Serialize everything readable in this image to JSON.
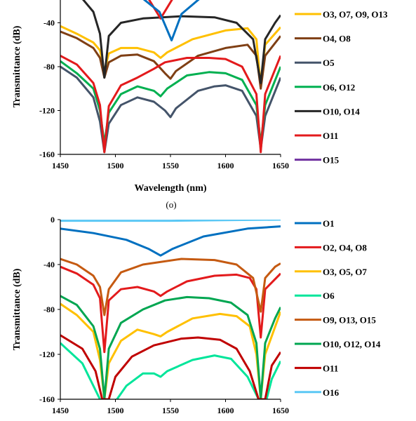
{
  "caption_o": "(o)",
  "chart_data": [
    {
      "type": "line",
      "title": "",
      "xlabel": "Wavelength (nm)",
      "ylabel": "Transmittance (dB)",
      "xlim": [
        1450,
        1650
      ],
      "ylim": [
        -160,
        0
      ],
      "xticks": [
        1450,
        1500,
        1550,
        1600,
        1650
      ],
      "yticks": [
        -40,
        -80,
        -120,
        -160
      ],
      "legend_position": "right",
      "clipped_top": true,
      "series": [
        {
          "name": "O3, O7, O9, O13",
          "color": "#ffc000",
          "points": [
            [
              1450,
              -43
            ],
            [
              1465,
              -50
            ],
            [
              1480,
              -58
            ],
            [
              1486,
              -65
            ],
            [
              1490,
              -84
            ],
            [
              1494,
              -68
            ],
            [
              1505,
              -63
            ],
            [
              1520,
              -63
            ],
            [
              1535,
              -67
            ],
            [
              1541,
              -72
            ],
            [
              1547,
              -67
            ],
            [
              1570,
              -55
            ],
            [
              1600,
              -47
            ],
            [
              1620,
              -45
            ],
            [
              1628,
              -55
            ],
            [
              1632,
              -98
            ],
            [
              1636,
              -60
            ],
            [
              1650,
              -44
            ]
          ]
        },
        {
          "name": "O4, O8",
          "color": "#7f3f14",
          "points": [
            [
              1450,
              -48
            ],
            [
              1465,
              -54
            ],
            [
              1480,
              -63
            ],
            [
              1486,
              -72
            ],
            [
              1490,
              -90
            ],
            [
              1494,
              -76
            ],
            [
              1505,
              -70
            ],
            [
              1520,
              -69
            ],
            [
              1535,
              -75
            ],
            [
              1545,
              -86
            ],
            [
              1550,
              -91
            ],
            [
              1555,
              -84
            ],
            [
              1575,
              -70
            ],
            [
              1600,
              -63
            ],
            [
              1620,
              -60
            ],
            [
              1628,
              -70
            ],
            [
              1632,
              -100
            ],
            [
              1636,
              -70
            ],
            [
              1650,
              -52
            ]
          ]
        },
        {
          "name": "O5",
          "color": "#44546a",
          "points": [
            [
              1450,
              -80
            ],
            [
              1465,
              -90
            ],
            [
              1480,
              -108
            ],
            [
              1486,
              -130
            ],
            [
              1490,
              -158
            ],
            [
              1494,
              -132
            ],
            [
              1505,
              -115
            ],
            [
              1520,
              -108
            ],
            [
              1535,
              -112
            ],
            [
              1545,
              -120
            ],
            [
              1550,
              -126
            ],
            [
              1555,
              -118
            ],
            [
              1575,
              -102
            ],
            [
              1590,
              -98
            ],
            [
              1600,
              -97
            ],
            [
              1615,
              -102
            ],
            [
              1628,
              -125
            ],
            [
              1632,
              -155
            ],
            [
              1636,
              -125
            ],
            [
              1650,
              -90
            ]
          ]
        },
        {
          "name": "O6, O12",
          "color": "#00b050",
          "points": [
            [
              1450,
              -75
            ],
            [
              1465,
              -86
            ],
            [
              1480,
              -100
            ],
            [
              1486,
              -120
            ],
            [
              1490,
              -150
            ],
            [
              1494,
              -122
            ],
            [
              1505,
              -105
            ],
            [
              1520,
              -98
            ],
            [
              1535,
              -102
            ],
            [
              1541,
              -107
            ],
            [
              1547,
              -100
            ],
            [
              1565,
              -88
            ],
            [
              1585,
              -85
            ],
            [
              1600,
              -86
            ],
            [
              1615,
              -92
            ],
            [
              1628,
              -115
            ],
            [
              1632,
              -150
            ],
            [
              1636,
              -115
            ],
            [
              1650,
              -80
            ]
          ]
        },
        {
          "name": "O10, O14",
          "color": "#262626",
          "points": [
            [
              1450,
              -3
            ],
            [
              1465,
              -12
            ],
            [
              1480,
              -30
            ],
            [
              1486,
              -50
            ],
            [
              1490,
              -90
            ],
            [
              1494,
              -52
            ],
            [
              1505,
              -40
            ],
            [
              1525,
              -36
            ],
            [
              1560,
              -34
            ],
            [
              1590,
              -35
            ],
            [
              1610,
              -40
            ],
            [
              1625,
              -55
            ],
            [
              1632,
              -95
            ],
            [
              1636,
              -55
            ],
            [
              1645,
              -40
            ],
            [
              1650,
              -33
            ]
          ]
        },
        {
          "name": "O11",
          "color": "#e31a1c",
          "points": [
            [
              1450,
              -70
            ],
            [
              1465,
              -78
            ],
            [
              1480,
              -95
            ],
            [
              1486,
              -115
            ],
            [
              1490,
              -158
            ],
            [
              1494,
              -116
            ],
            [
              1505,
              -97
            ],
            [
              1520,
              -90
            ],
            [
              1535,
              -82
            ],
            [
              1545,
              -76
            ],
            [
              1565,
              -72
            ],
            [
              1585,
              -72
            ],
            [
              1600,
              -73
            ],
            [
              1615,
              -80
            ],
            [
              1628,
              -105
            ],
            [
              1632,
              -158
            ],
            [
              1636,
              -105
            ],
            [
              1650,
              -70
            ]
          ]
        },
        {
          "name": "",
          "color": "#e31a1c",
          "points": [
            [
              1530,
              -18
            ],
            [
              1541,
              -36
            ],
            [
              1552,
              -18
            ]
          ]
        },
        {
          "name": "",
          "color": "#0070c0",
          "points": [
            [
              1485,
              -7
            ],
            [
              1525,
              -18
            ],
            [
              1540,
              -30
            ],
            [
              1551,
              -56
            ],
            [
              1560,
              -32
            ],
            [
              1580,
              -15
            ],
            [
              1600,
              -7
            ]
          ]
        },
        {
          "name": "O15",
          "color": "#7030a0",
          "points": []
        }
      ]
    },
    {
      "type": "line",
      "title": "",
      "xlabel": "",
      "ylabel": "Transmittance (dB)",
      "xlim": [
        1450,
        1650
      ],
      "ylim": [
        -160,
        0
      ],
      "xticks": [
        1450,
        1500,
        1550,
        1600,
        1650
      ],
      "yticks": [
        0,
        -40,
        -80,
        -120,
        -160
      ],
      "legend_position": "right",
      "series": [
        {
          "name": "O1",
          "color": "#0070c0",
          "points": [
            [
              1450,
              -8
            ],
            [
              1480,
              -12
            ],
            [
              1510,
              -18
            ],
            [
              1530,
              -26
            ],
            [
              1541,
              -32
            ],
            [
              1552,
              -26
            ],
            [
              1580,
              -15
            ],
            [
              1620,
              -8
            ],
            [
              1650,
              -6
            ]
          ]
        },
        {
          "name": "O2, O4, O8",
          "color": "#e31a1c",
          "points": [
            [
              1450,
              -42
            ],
            [
              1465,
              -48
            ],
            [
              1480,
              -58
            ],
            [
              1486,
              -70
            ],
            [
              1490,
              -118
            ],
            [
              1494,
              -72
            ],
            [
              1505,
              -62
            ],
            [
              1520,
              -60
            ],
            [
              1535,
              -64
            ],
            [
              1541,
              -68
            ],
            [
              1547,
              -64
            ],
            [
              1565,
              -55
            ],
            [
              1590,
              -50
            ],
            [
              1610,
              -49
            ],
            [
              1622,
              -52
            ],
            [
              1628,
              -62
            ],
            [
              1632,
              -105
            ],
            [
              1636,
              -62
            ],
            [
              1650,
              -48
            ]
          ]
        },
        {
          "name": "O3, O5, O7",
          "color": "#ffc000",
          "points": [
            [
              1450,
              -75
            ],
            [
              1465,
              -85
            ],
            [
              1480,
              -100
            ],
            [
              1486,
              -125
            ],
            [
              1490,
              -160
            ],
            [
              1494,
              -128
            ],
            [
              1505,
              -108
            ],
            [
              1520,
              -98
            ],
            [
              1535,
              -102
            ],
            [
              1541,
              -104
            ],
            [
              1547,
              -100
            ],
            [
              1570,
              -88
            ],
            [
              1595,
              -84
            ],
            [
              1610,
              -86
            ],
            [
              1622,
              -95
            ],
            [
              1628,
              -120
            ],
            [
              1632,
              -160
            ],
            [
              1636,
              -120
            ],
            [
              1650,
              -82
            ]
          ]
        },
        {
          "name": "O6",
          "color": "#00e59a",
          "points": [
            [
              1450,
              -110
            ],
            [
              1470,
              -128
            ],
            [
              1486,
              -160
            ],
            [
              1494,
              -165
            ],
            [
              1500,
              -162
            ],
            [
              1510,
              -148
            ],
            [
              1525,
              -137
            ],
            [
              1535,
              -137
            ],
            [
              1541,
              -140
            ],
            [
              1547,
              -135
            ],
            [
              1570,
              -125
            ],
            [
              1590,
              -121
            ],
            [
              1605,
              -124
            ],
            [
              1620,
              -140
            ],
            [
              1630,
              -160
            ],
            [
              1636,
              -165
            ],
            [
              1642,
              -142
            ],
            [
              1650,
              -126
            ]
          ]
        },
        {
          "name": "O9, O13, O15",
          "color": "#c55a11",
          "points": [
            [
              1450,
              -35
            ],
            [
              1465,
              -40
            ],
            [
              1480,
              -50
            ],
            [
              1486,
              -60
            ],
            [
              1490,
              -85
            ],
            [
              1494,
              -62
            ],
            [
              1505,
              -47
            ],
            [
              1525,
              -40
            ],
            [
              1560,
              -35
            ],
            [
              1590,
              -36
            ],
            [
              1610,
              -40
            ],
            [
              1625,
              -52
            ],
            [
              1632,
              -82
            ],
            [
              1636,
              -52
            ],
            [
              1645,
              -42
            ],
            [
              1650,
              -39
            ]
          ]
        },
        {
          "name": "O10, O12, O14",
          "color": "#00a651",
          "points": [
            [
              1450,
              -68
            ],
            [
              1465,
              -76
            ],
            [
              1480,
              -95
            ],
            [
              1486,
              -115
            ],
            [
              1490,
              -160
            ],
            [
              1494,
              -115
            ],
            [
              1505,
              -92
            ],
            [
              1525,
              -80
            ],
            [
              1545,
              -72
            ],
            [
              1565,
              -69
            ],
            [
              1585,
              -70
            ],
            [
              1605,
              -74
            ],
            [
              1620,
              -85
            ],
            [
              1628,
              -110
            ],
            [
              1632,
              -160
            ],
            [
              1636,
              -110
            ],
            [
              1645,
              -88
            ],
            [
              1650,
              -78
            ]
          ]
        },
        {
          "name": "O11",
          "color": "#c00000",
          "points": [
            [
              1450,
              -103
            ],
            [
              1470,
              -115
            ],
            [
              1482,
              -135
            ],
            [
              1488,
              -160
            ],
            [
              1494,
              -160
            ],
            [
              1500,
              -140
            ],
            [
              1515,
              -122
            ],
            [
              1535,
              -112
            ],
            [
              1560,
              -106
            ],
            [
              1575,
              -105
            ],
            [
              1595,
              -107
            ],
            [
              1610,
              -115
            ],
            [
              1622,
              -135
            ],
            [
              1630,
              -160
            ],
            [
              1636,
              -160
            ],
            [
              1642,
              -130
            ],
            [
              1650,
              -118
            ]
          ]
        },
        {
          "name": "O16",
          "color": "#5bc8f5",
          "points": [
            [
              1450,
              -1
            ],
            [
              1500,
              -1
            ],
            [
              1550,
              -1
            ],
            [
              1600,
              -0.5
            ],
            [
              1650,
              0
            ]
          ]
        }
      ]
    }
  ]
}
